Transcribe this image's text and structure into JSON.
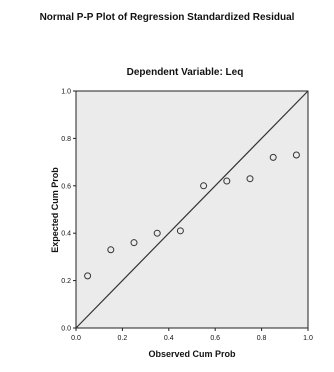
{
  "chart_data": {
    "type": "scatter",
    "title": "Normal P-P Plot of Regression Standardized Residual",
    "subtitle": "Dependent Variable: Leq",
    "xlabel": "Observed Cum Prob",
    "ylabel": "Expected Cum Prob",
    "xlim": [
      0,
      1
    ],
    "ylim": [
      0,
      1
    ],
    "x_ticks": [
      0.0,
      0.2,
      0.4,
      0.6,
      0.8,
      1.0
    ],
    "y_ticks": [
      0.0,
      0.2,
      0.4,
      0.6,
      0.8,
      1.0
    ],
    "x_tick_labels": [
      "0.0",
      "0.2",
      "0.4",
      "0.6",
      "0.8",
      "1.0"
    ],
    "y_tick_labels": [
      "0.0",
      "0.2",
      "0.4",
      "0.6",
      "0.8",
      "1.0"
    ],
    "grid": false,
    "reference_line": {
      "from": [
        0,
        0
      ],
      "to": [
        1,
        1
      ]
    },
    "points": [
      {
        "x": 0.05,
        "y": 0.22
      },
      {
        "x": 0.15,
        "y": 0.33
      },
      {
        "x": 0.25,
        "y": 0.36
      },
      {
        "x": 0.35,
        "y": 0.4
      },
      {
        "x": 0.45,
        "y": 0.41
      },
      {
        "x": 0.55,
        "y": 0.6
      },
      {
        "x": 0.65,
        "y": 0.62
      },
      {
        "x": 0.75,
        "y": 0.63
      },
      {
        "x": 0.85,
        "y": 0.72
      },
      {
        "x": 0.95,
        "y": 0.73
      }
    ],
    "colors": {
      "plot_background": "#ebebeb",
      "frame": "#222222",
      "marker_stroke": "#333333",
      "reference_line": "#333333"
    }
  }
}
